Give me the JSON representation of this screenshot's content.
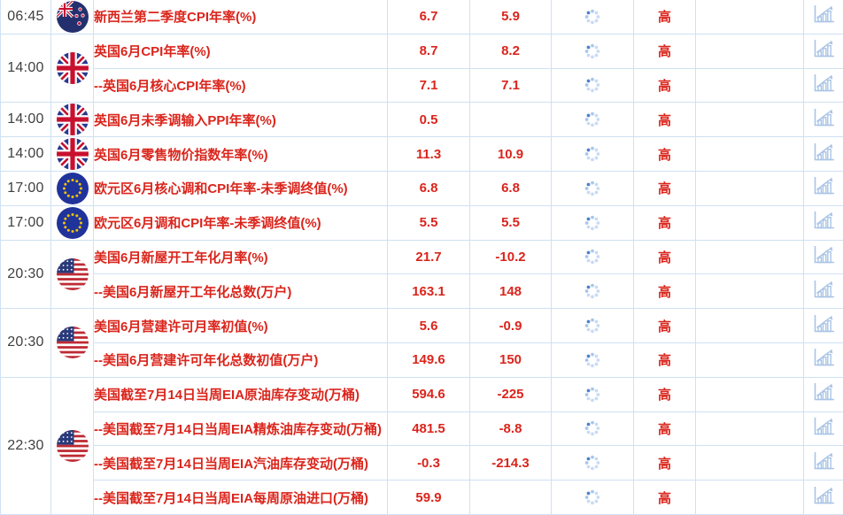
{
  "page": {
    "type": "economic-calendar-table",
    "background": "#ffffff"
  },
  "colors": {
    "accent_red": "#da251c",
    "border_blue": "#cfe1f3",
    "time_text": "#3f3f3f",
    "icon_light_blue": "#a9c4e6",
    "spinner_light": "#c9dbf4",
    "spinner_dark": "#4e82cf",
    "eu_flag_blue": "#20339b",
    "eu_star_gold": "#f5c400",
    "uk_flag_blue": "#27388f",
    "flag_red": "#c8102e",
    "us_canton_blue": "#2a3a7a"
  },
  "icons": {
    "status_icon": "loading-spinner-icon",
    "action_icon": "bar-chart-icon"
  },
  "rows": [
    {
      "time": "06:45",
      "time_rowspan": 1,
      "flag": "new-zealand",
      "name": "新西兰第二季度CPI年率(%)",
      "previous": "6.7",
      "actual": "5.9",
      "importance": "高"
    },
    {
      "time": "14:00",
      "time_rowspan": 2,
      "flag": "uk",
      "name": "英国6月CPI年率(%)",
      "previous": "8.7",
      "actual": "8.2",
      "importance": "高"
    },
    {
      "name": "--英国6月核心CPI年率(%)",
      "previous": "7.1",
      "actual": "7.1",
      "importance": "高"
    },
    {
      "time": "14:00",
      "time_rowspan": 1,
      "flag": "uk",
      "name": "英国6月未季调输入PPI年率(%)",
      "previous": "0.5",
      "actual": "",
      "importance": "高"
    },
    {
      "time": "14:00",
      "time_rowspan": 1,
      "flag": "uk",
      "name": "英国6月零售物价指数年率(%)",
      "previous": "11.3",
      "actual": "10.9",
      "importance": "高"
    },
    {
      "time": "17:00",
      "time_rowspan": 1,
      "flag": "eu",
      "name": "欧元区6月核心调和CPI年率-未季调终值(%)",
      "previous": "6.8",
      "actual": "6.8",
      "importance": "高"
    },
    {
      "time": "17:00",
      "time_rowspan": 1,
      "flag": "eu",
      "name": "欧元区6月调和CPI年率-未季调终值(%)",
      "previous": "5.5",
      "actual": "5.5",
      "importance": "高"
    },
    {
      "time": "20:30",
      "time_rowspan": 2,
      "flag": "us",
      "name": "美国6月新屋开工年化月率(%)",
      "previous": "21.7",
      "actual": "-10.2",
      "importance": "高"
    },
    {
      "name": "--美国6月新屋开工年化总数(万户)",
      "previous": "163.1",
      "actual": "148",
      "importance": "高"
    },
    {
      "time": "20:30",
      "time_rowspan": 2,
      "flag": "us",
      "name": "美国6月营建许可月率初值(%)",
      "previous": "5.6",
      "actual": "-0.9",
      "importance": "高"
    },
    {
      "name": "--美国6月营建许可年化总数初值(万户)",
      "previous": "149.6",
      "actual": "150",
      "importance": "高"
    },
    {
      "time": "22:30",
      "time_rowspan": 4,
      "flag": "us",
      "name": "美国截至7月14日当周EIA原油库存变动(万桶)",
      "previous": "594.6",
      "actual": "-225",
      "importance": "高"
    },
    {
      "name": "--美国截至7月14日当周EIA精炼油库存变动(万桶)",
      "previous": "481.5",
      "actual": "-8.8",
      "importance": "高"
    },
    {
      "name": "--美国截至7月14日当周EIA汽油库存变动(万桶)",
      "previous": "-0.3",
      "actual": "-214.3",
      "importance": "高"
    },
    {
      "name": "--美国截至7月14日当周EIA每周原油进口(万桶)",
      "previous": "59.9",
      "actual": "",
      "importance": "高"
    }
  ]
}
